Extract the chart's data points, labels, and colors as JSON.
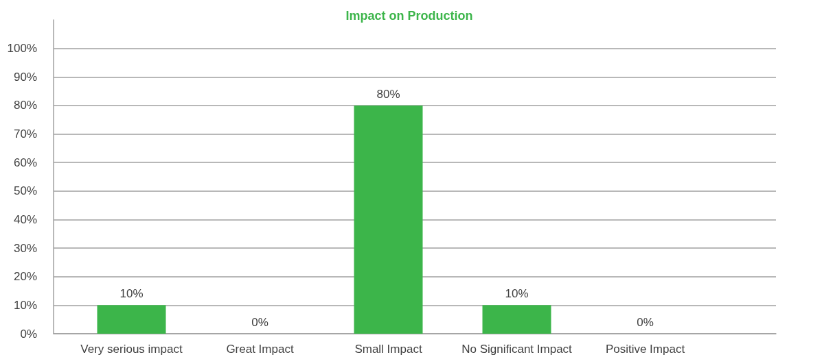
{
  "chart_data": {
    "type": "bar",
    "title": "Impact on Production",
    "categories": [
      "Very serious impact",
      "Great Impact",
      "Small Impact",
      "No Significant Impact",
      "Positive Impact"
    ],
    "values": [
      10,
      0,
      80,
      10,
      0
    ],
    "color": "#3cb54a",
    "value_labels": [
      "10%",
      "0%",
      "80%",
      "10%",
      "0%"
    ],
    "ylim": [
      0,
      110
    ],
    "yticks": [
      {
        "value": 0,
        "label": "0%"
      },
      {
        "value": 10,
        "label": "10%"
      },
      {
        "value": 20,
        "label": "20%"
      },
      {
        "value": 30,
        "label": "30%"
      },
      {
        "value": 40,
        "label": "40%"
      },
      {
        "value": 50,
        "label": "50%"
      },
      {
        "value": 60,
        "label": "60%"
      },
      {
        "value": 70,
        "label": "70%"
      },
      {
        "value": 80,
        "label": "80%"
      },
      {
        "value": 90,
        "label": "90%"
      },
      {
        "value": 100,
        "label": "100%"
      }
    ],
    "grid": "y"
  }
}
